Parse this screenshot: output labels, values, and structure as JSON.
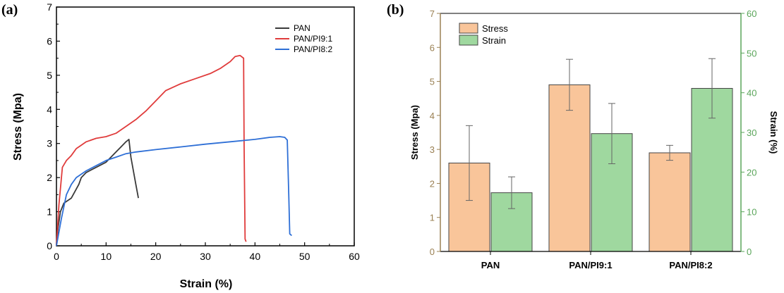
{
  "chart_data": [
    {
      "panel": "(a)",
      "type": "line",
      "title": "",
      "xlabel": "Strain (%)",
      "ylabel": "Stress (Mpa)",
      "xlim": [
        0,
        60
      ],
      "ylim": [
        0,
        7
      ],
      "xticks": [
        0,
        10,
        20,
        30,
        40,
        50,
        60
      ],
      "yticks": [
        0,
        1,
        2,
        3,
        4,
        5,
        6,
        7
      ],
      "legend_position": "top-right",
      "series": [
        {
          "name": "PAN",
          "color": "#3a3a3a",
          "points": [
            [
              0,
              0
            ],
            [
              0.3,
              0.5
            ],
            [
              0.8,
              1.0
            ],
            [
              1.5,
              1.25
            ],
            [
              3,
              1.4
            ],
            [
              4.5,
              1.8
            ],
            [
              5,
              2.0
            ],
            [
              6,
              2.15
            ],
            [
              8,
              2.3
            ],
            [
              10,
              2.45
            ],
            [
              12,
              2.75
            ],
            [
              13,
              2.9
            ],
            [
              14,
              3.05
            ],
            [
              14.6,
              3.12
            ],
            [
              15,
              2.6
            ],
            [
              15.5,
              2.2
            ],
            [
              16,
              1.8
            ],
            [
              16.5,
              1.4
            ]
          ]
        },
        {
          "name": "PAN/PI9:1",
          "color": "#e03c3c",
          "points": [
            [
              0,
              0
            ],
            [
              0.5,
              1.2
            ],
            [
              1.2,
              2.3
            ],
            [
              2,
              2.5
            ],
            [
              3,
              2.65
            ],
            [
              4,
              2.85
            ],
            [
              5,
              2.95
            ],
            [
              6,
              3.05
            ],
            [
              8,
              3.15
            ],
            [
              10,
              3.2
            ],
            [
              12,
              3.3
            ],
            [
              14,
              3.5
            ],
            [
              16,
              3.7
            ],
            [
              18,
              3.95
            ],
            [
              20,
              4.25
            ],
            [
              22,
              4.55
            ],
            [
              25,
              4.75
            ],
            [
              28,
              4.9
            ],
            [
              31,
              5.05
            ],
            [
              33,
              5.2
            ],
            [
              35,
              5.4
            ],
            [
              36,
              5.55
            ],
            [
              37,
              5.58
            ],
            [
              37.7,
              5.5
            ],
            [
              37.8,
              3.0
            ],
            [
              38,
              0.2
            ],
            [
              38.2,
              0.12
            ]
          ]
        },
        {
          "name": "PAN/PI8:2",
          "color": "#2e6fd6",
          "points": [
            [
              0,
              0
            ],
            [
              0.5,
              0.4
            ],
            [
              1,
              0.8
            ],
            [
              2,
              1.5
            ],
            [
              3,
              1.8
            ],
            [
              4,
              2.0
            ],
            [
              6,
              2.2
            ],
            [
              8,
              2.35
            ],
            [
              10,
              2.5
            ],
            [
              12,
              2.6
            ],
            [
              14,
              2.7
            ],
            [
              16,
              2.75
            ],
            [
              20,
              2.82
            ],
            [
              25,
              2.9
            ],
            [
              30,
              2.98
            ],
            [
              35,
              3.05
            ],
            [
              40,
              3.12
            ],
            [
              43,
              3.18
            ],
            [
              45,
              3.2
            ],
            [
              46,
              3.18
            ],
            [
              46.5,
              3.1
            ],
            [
              46.8,
              1.5
            ],
            [
              47,
              0.35
            ],
            [
              47.4,
              0.3
            ]
          ]
        }
      ]
    },
    {
      "panel": "(b)",
      "type": "bar",
      "title": "",
      "xlabel": "",
      "ylabel": "Stress (Mpa)",
      "y2label": "Strain (%)",
      "ylim": [
        0,
        7
      ],
      "y2lim": [
        0,
        60
      ],
      "yticks": [
        0,
        1,
        2,
        3,
        4,
        5,
        6,
        7
      ],
      "y2ticks": [
        0,
        10,
        20,
        30,
        40,
        50,
        60
      ],
      "categories": [
        "PAN",
        "PAN/PI9:1",
        "PAN/PI8:2"
      ],
      "legend_position": "top-left",
      "series": [
        {
          "name": "Stress",
          "axis": "left",
          "color": "#f9c59a",
          "values": [
            2.6,
            4.9,
            2.9
          ],
          "errors": [
            1.1,
            0.75,
            0.22
          ]
        },
        {
          "name": "Strain",
          "axis": "right",
          "color": "#9fd89f",
          "values": [
            14.8,
            29.7,
            41.1
          ],
          "errors": [
            4.0,
            7.6,
            7.5
          ]
        }
      ],
      "left_axis_color": "#9a8053",
      "right_axis_color": "#5aa55a"
    }
  ]
}
